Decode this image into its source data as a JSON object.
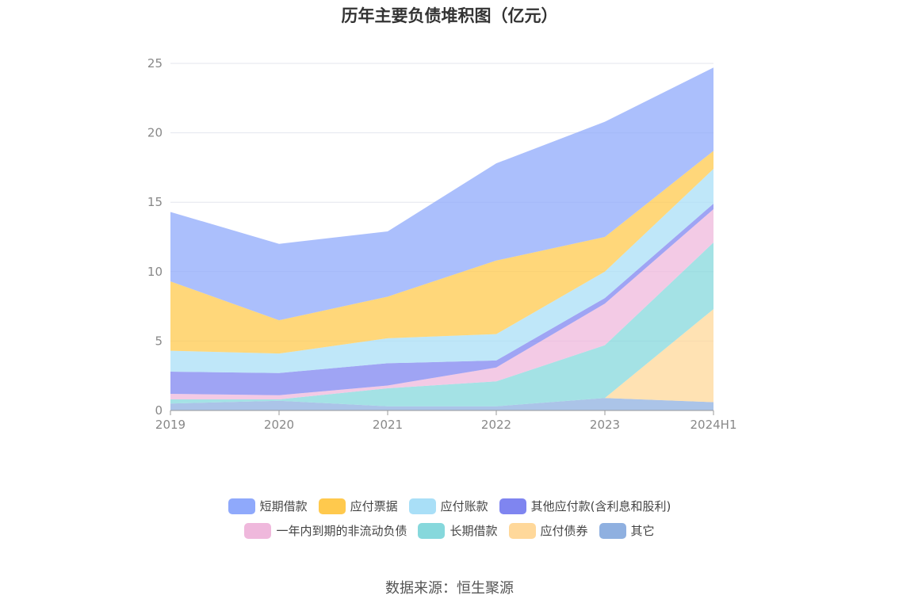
{
  "chart_data": {
    "type": "area",
    "stacked": true,
    "title": "历年主要负债堆积图（亿元）",
    "x": [
      "2019",
      "2020",
      "2021",
      "2022",
      "2023",
      "2024H1"
    ],
    "ylim": [
      0,
      25
    ],
    "yticks": [
      0,
      5,
      10,
      15,
      20,
      25
    ],
    "grid": true,
    "legend_position": "bottom",
    "series": [
      {
        "name": "其它",
        "color": "#8fb0e0",
        "values": [
          0.5,
          0.7,
          0.3,
          0.3,
          0.9,
          0.6
        ]
      },
      {
        "name": "应付债券",
        "color": "#ffd89a",
        "values": [
          0,
          0,
          0,
          0,
          0,
          6.7
        ]
      },
      {
        "name": "长期借款",
        "color": "#86d8dc",
        "values": [
          0.3,
          0.1,
          1.3,
          1.8,
          3.8,
          4.8
        ]
      },
      {
        "name": "一年内到期的非流动负债",
        "color": "#efb8dc",
        "values": [
          0.4,
          0.3,
          0.2,
          1.0,
          3.0,
          2.4
        ]
      },
      {
        "name": "其他应付款(含利息和股利)",
        "color": "#7f85f0",
        "values": [
          1.6,
          1.6,
          1.6,
          0.5,
          0.4,
          0.4
        ]
      },
      {
        "name": "应付账款",
        "color": "#a9dff7",
        "values": [
          1.5,
          1.4,
          1.8,
          1.9,
          1.9,
          2.5
        ]
      },
      {
        "name": "应付票据",
        "color": "#ffc94d",
        "values": [
          5.0,
          2.4,
          3.0,
          5.3,
          2.5,
          1.3
        ]
      },
      {
        "name": "短期借款",
        "color": "#8fa9fb",
        "values": [
          5.0,
          5.5,
          4.7,
          7.0,
          8.3,
          6.0
        ]
      }
    ]
  },
  "legend": {
    "row1": [
      {
        "name": "短期借款",
        "color": "#8fa9fb"
      },
      {
        "name": "应付票据",
        "color": "#ffc94d"
      },
      {
        "name": "应付账款",
        "color": "#a9dff7"
      },
      {
        "name": "其他应付款(含利息和股利)",
        "color": "#7f85f0"
      }
    ],
    "row2": [
      {
        "name": "一年内到期的非流动负债",
        "color": "#efb8dc"
      },
      {
        "name": "长期借款",
        "color": "#86d8dc"
      },
      {
        "name": "应付债券",
        "color": "#ffd89a"
      },
      {
        "name": "其它",
        "color": "#8fb0e0"
      }
    ]
  },
  "source": "数据来源：恒生聚源"
}
